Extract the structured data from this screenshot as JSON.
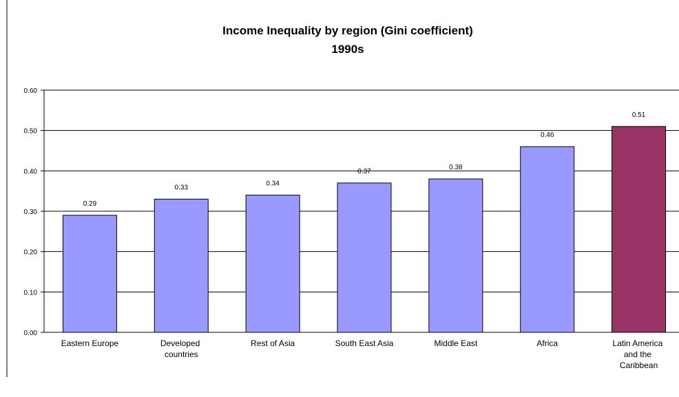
{
  "chart_data": {
    "type": "bar",
    "title": "Income Inequality by region (Gini coefficient)",
    "subtitle": "1990s",
    "categories": [
      "Eastern Europe",
      "Developed countries",
      "Rest of Asia",
      "South East Asia",
      "Middle East",
      "Africa",
      "Latin America and the Caribbean"
    ],
    "values": [
      0.29,
      0.33,
      0.34,
      0.37,
      0.38,
      0.46,
      0.51
    ],
    "colors": [
      "#9999ff",
      "#9999ff",
      "#9999ff",
      "#9999ff",
      "#9999ff",
      "#9999ff",
      "#993366"
    ],
    "ylim": [
      0,
      0.6
    ],
    "yticks": [
      {
        "value": 0,
        "label": "0.00"
      },
      {
        "value": 0.1,
        "label": "0.10"
      },
      {
        "value": 0.2,
        "label": "0.20"
      },
      {
        "value": 0.3,
        "label": "0.30"
      },
      {
        "value": 0.4,
        "label": "0.40"
      },
      {
        "value": 0.5,
        "label": "0.50"
      },
      {
        "value": 0.6,
        "label": "0.60"
      }
    ],
    "grid": true
  }
}
